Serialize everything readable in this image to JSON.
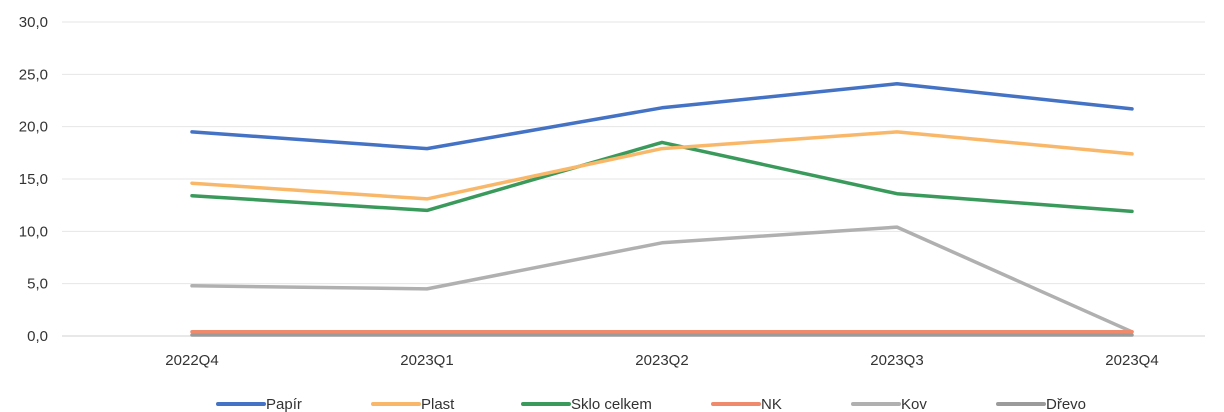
{
  "chart_data": {
    "type": "line",
    "categories": [
      "2022Q4",
      "2023Q1",
      "2023Q2",
      "2023Q3",
      "2023Q4"
    ],
    "ylim": [
      0,
      30
    ],
    "yticks": [
      "0,0",
      "5,0",
      "10,0",
      "15,0",
      "20,0",
      "25,0",
      "30,0"
    ],
    "grid": true,
    "legend_position": "bottom",
    "series": [
      {
        "name": "Papír",
        "color": "#4472C4",
        "values": [
          19.5,
          17.9,
          21.8,
          24.1,
          21.7
        ]
      },
      {
        "name": "Plast",
        "color": "#F9B869",
        "values": [
          14.6,
          13.1,
          17.9,
          19.5,
          17.4
        ]
      },
      {
        "name": "Sklo celkem",
        "color": "#3A9A5B",
        "values": [
          13.4,
          12.0,
          18.5,
          13.6,
          11.9
        ]
      },
      {
        "name": "NK",
        "color": "#F08A6C",
        "values": [
          0.4,
          0.4,
          0.4,
          0.4,
          0.4
        ]
      },
      {
        "name": "Kov",
        "color": "#B0B0B0",
        "values": [
          4.8,
          4.5,
          8.9,
          10.4,
          0.4
        ]
      },
      {
        "name": "Dřevo",
        "color": "#9B9B9B",
        "values": [
          0.1,
          0.1,
          0.1,
          0.1,
          0.1
        ]
      }
    ]
  }
}
